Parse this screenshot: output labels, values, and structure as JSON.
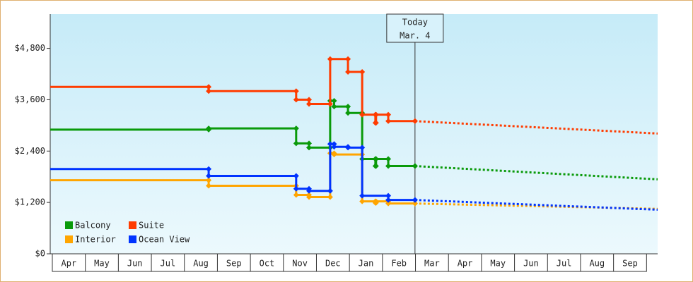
{
  "chart_data": {
    "type": "step-line",
    "xlim": [
      0,
      18.4
    ],
    "ylim": [
      0,
      5600
    ],
    "yticks": [
      {
        "value": 0,
        "label": "$0"
      },
      {
        "value": 1200,
        "label": "$1,200"
      },
      {
        "value": 2400,
        "label": "$2,400"
      },
      {
        "value": 3600,
        "label": "$3,600"
      },
      {
        "value": 4800,
        "label": "$4,800"
      }
    ],
    "categories": [
      "Apr",
      "May",
      "Jun",
      "Jul",
      "Aug",
      "Sep",
      "Oct",
      "Nov",
      "Dec",
      "Jan",
      "Feb",
      "Mar",
      "Apr",
      "May",
      "Jun",
      "Jul",
      "Aug",
      "Sep"
    ],
    "today": {
      "x": 11.05,
      "label": "Today",
      "date": "Mar. 4"
    },
    "legend": "lower left",
    "series": [
      {
        "name": "Balcony",
        "color": "#0a9a0a",
        "x": [
          0,
          4.8,
          7.45,
          7.84,
          8.48,
          8.6,
          9.02,
          9.45,
          9.85,
          9.87,
          10.24,
          11.05
        ],
        "values": [
          2900,
          2930,
          2580,
          2480,
          3575,
          3440,
          3290,
          2215,
          2050,
          2215,
          2050,
          2050
        ],
        "projection": {
          "x": 18.4,
          "value": 1740
        }
      },
      {
        "name": "Suite",
        "color": "#ff3c00",
        "x": [
          0,
          4.8,
          7.45,
          7.84,
          8.48,
          9.02,
          9.45,
          9.85,
          9.87,
          10.24,
          11.05
        ],
        "values": [
          3900,
          3800,
          3600,
          3500,
          4550,
          4250,
          3250,
          3060,
          3250,
          3100,
          3100
        ],
        "projection": {
          "x": 18.4,
          "value": 2810
        }
      },
      {
        "name": "Interior",
        "color": "#ffa500",
        "x": [
          0,
          4.8,
          7.45,
          7.84,
          8.48,
          8.6,
          9.45,
          9.85,
          9.87,
          10.24,
          11.05
        ],
        "values": [
          1720,
          1590,
          1375,
          1325,
          2350,
          2320,
          1225,
          1190,
          1225,
          1175,
          1175
        ],
        "projection": {
          "x": 18.4,
          "value": 1050
        }
      },
      {
        "name": "Ocean View",
        "color": "#0033ff",
        "x": [
          0,
          4.8,
          7.45,
          7.84,
          8.48,
          8.6,
          9.02,
          9.45,
          10.24,
          11.05
        ],
        "values": [
          1980,
          1820,
          1520,
          1470,
          2565,
          2500,
          2480,
          1357,
          1258,
          1258
        ],
        "projection": {
          "x": 18.4,
          "value": 1030
        }
      }
    ]
  }
}
